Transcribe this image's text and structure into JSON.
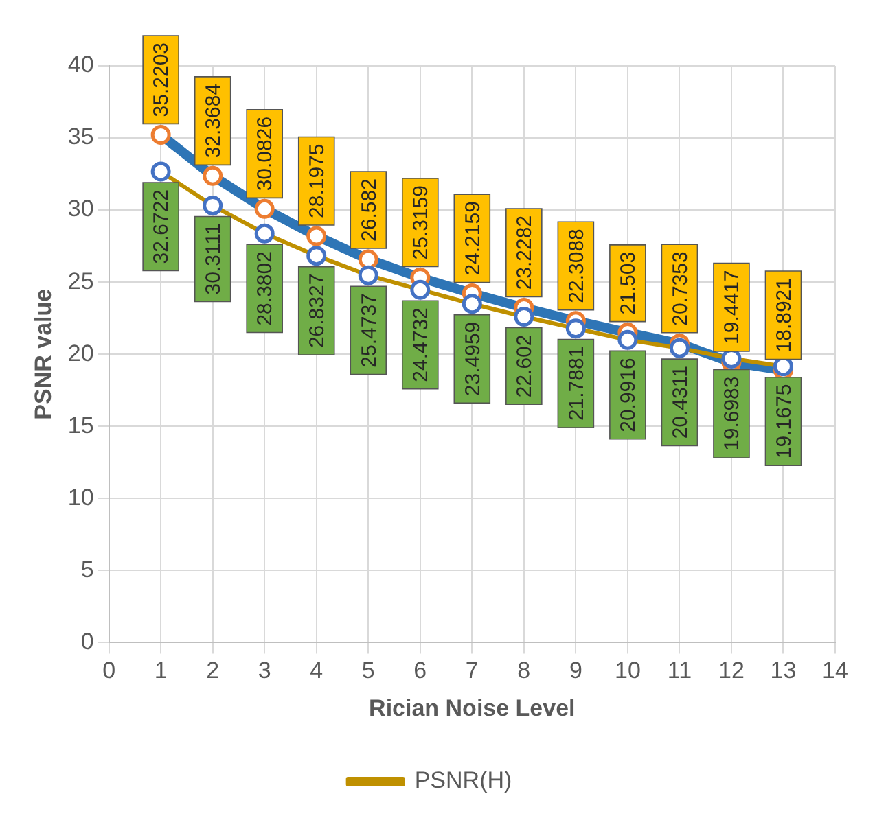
{
  "chart_data": {
    "type": "line",
    "xlabel": "Rician Noise Level",
    "ylabel": "PSNR value",
    "x": [
      1,
      2,
      3,
      4,
      5,
      6,
      7,
      8,
      9,
      10,
      11,
      12,
      13
    ],
    "series": [
      {
        "color": "#2e75b6",
        "values": [
          35.2203,
          32.3684,
          30.0826,
          28.1975,
          26.582,
          25.3159,
          24.2159,
          23.2282,
          22.3088,
          21.503,
          20.7353,
          19.4417,
          18.8921
        ]
      },
      {
        "name": "PSNR(H)",
        "color": "#bf9000",
        "values": [
          32.6722,
          30.3111,
          28.3802,
          26.8327,
          25.4737,
          24.4732,
          23.4959,
          22.602,
          21.7881,
          20.9916,
          20.4311,
          19.6983,
          19.1675
        ]
      }
    ],
    "xlim": [
      0,
      14
    ],
    "xticks": [
      0,
      1,
      2,
      3,
      4,
      5,
      6,
      7,
      8,
      9,
      10,
      11,
      12,
      13,
      14
    ],
    "ylim": [
      0,
      40
    ],
    "yticks": [
      0,
      5,
      10,
      15,
      20,
      25,
      30,
      35,
      40
    ],
    "grid": true,
    "legend": "bottom",
    "marker": "circle",
    "line_style": "solid",
    "data_labels": true
  }
}
